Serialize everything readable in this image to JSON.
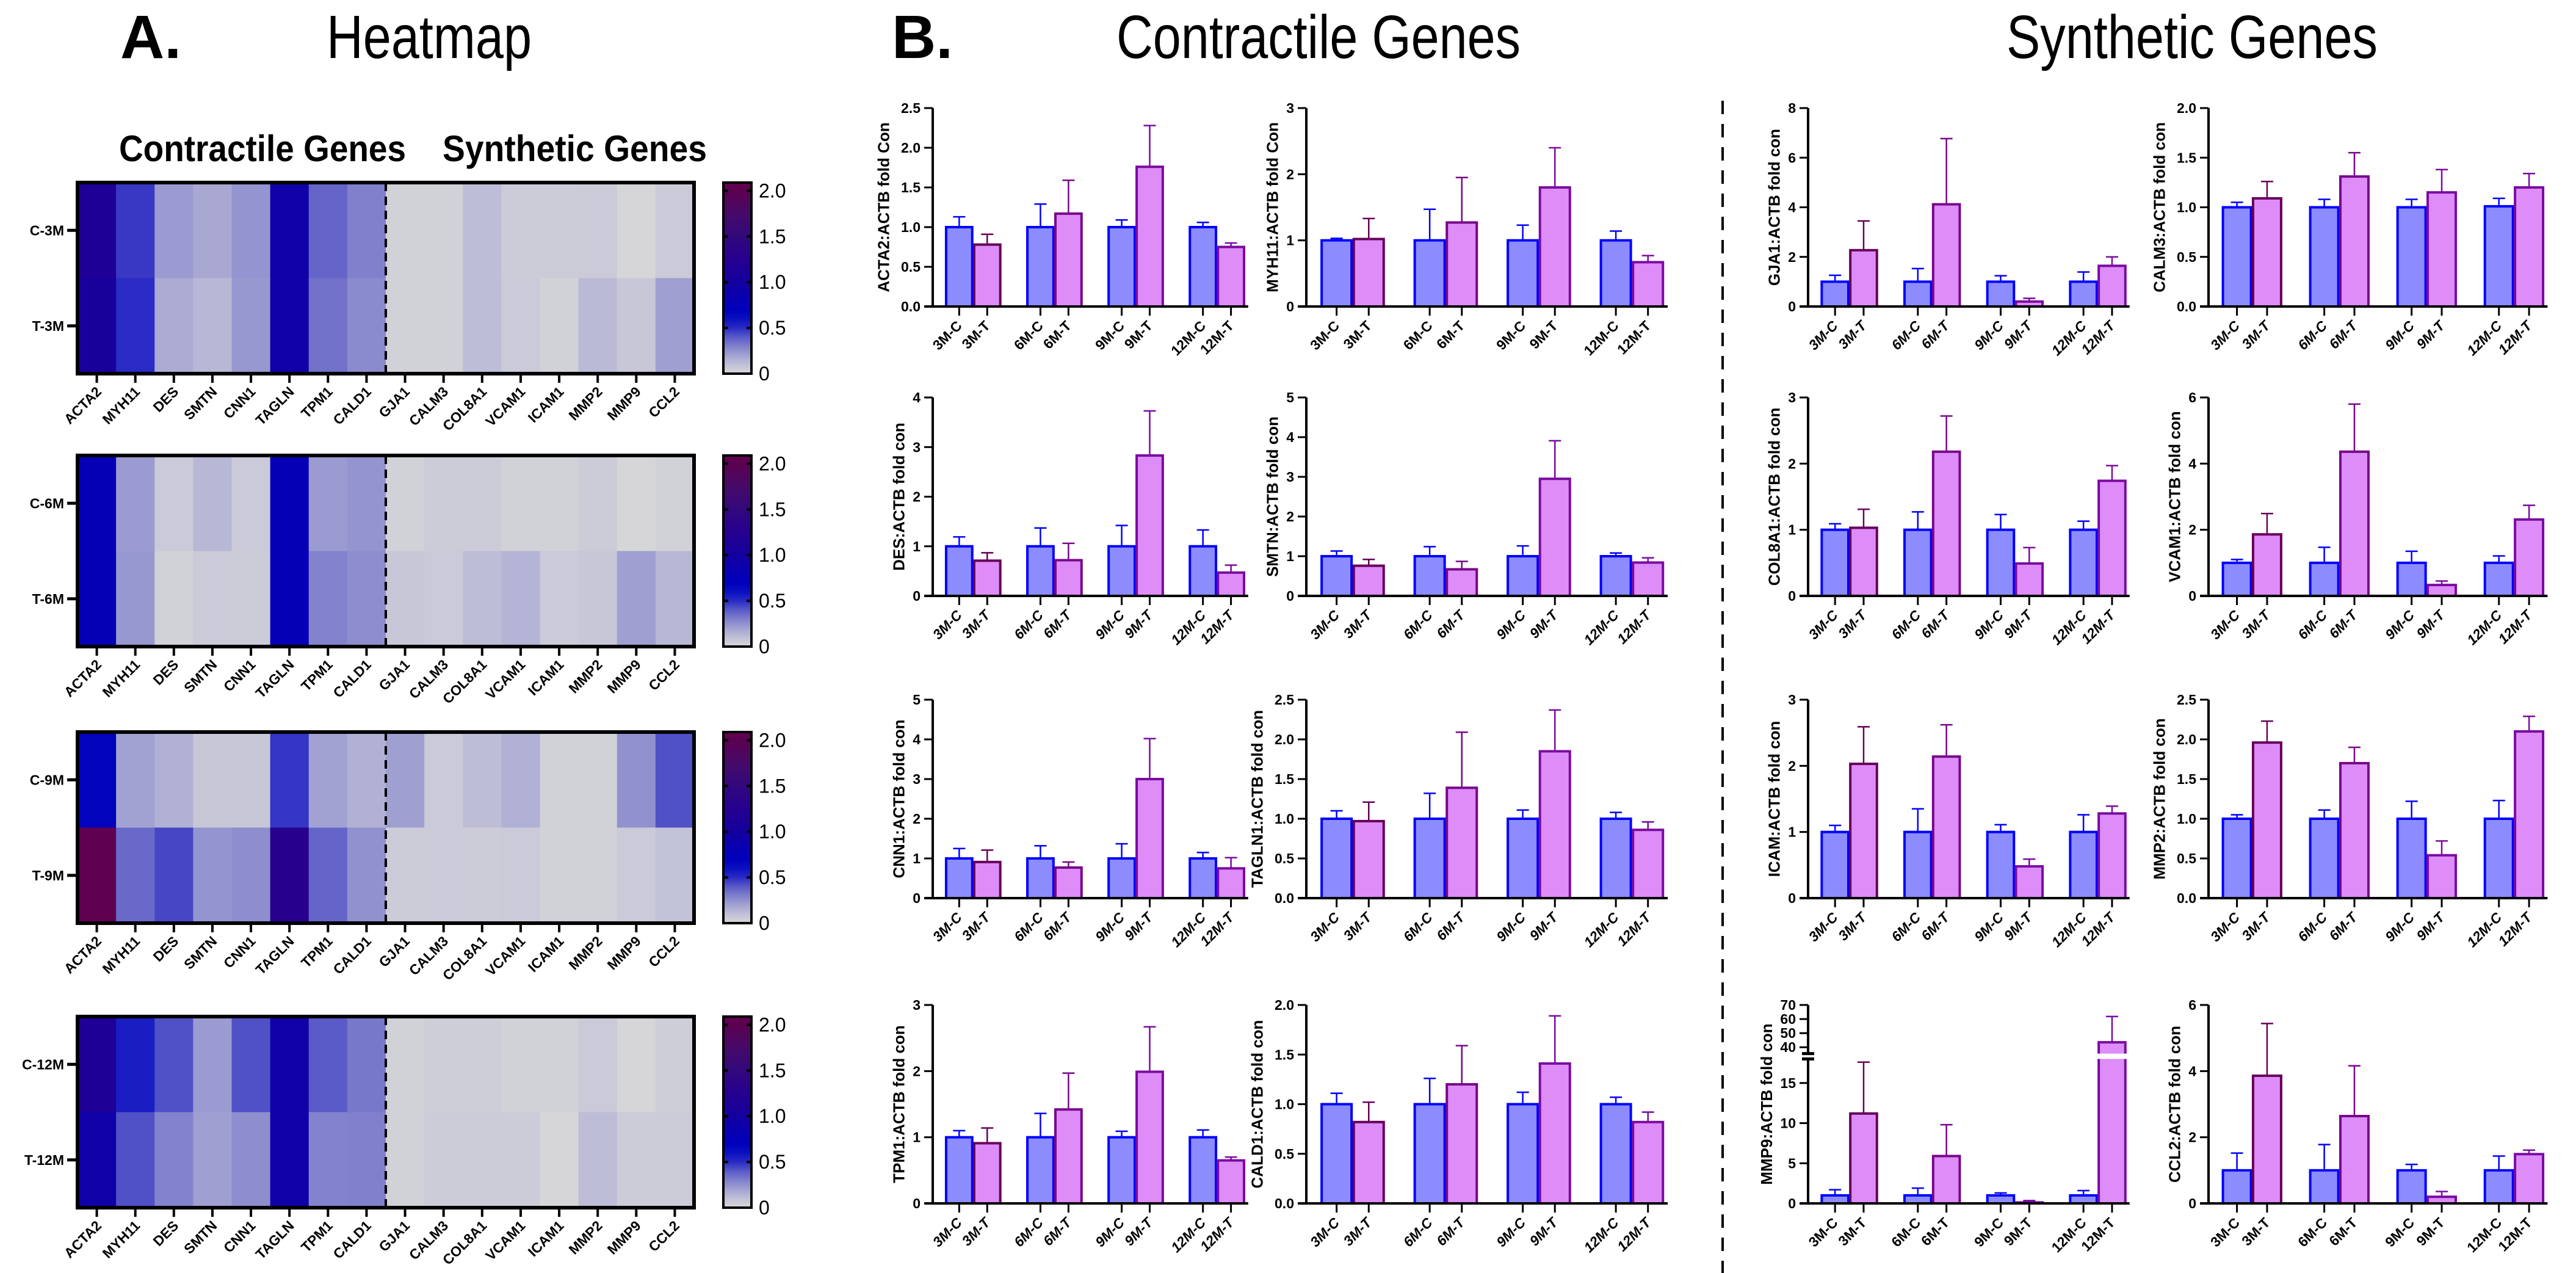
{
  "panel_a": {
    "letter": "A.",
    "title": "Heatmap",
    "group_labels": [
      "Contractile Genes",
      "Synthetic Genes"
    ]
  },
  "panel_b": {
    "letter": "B.",
    "group_titles": [
      "Contractile Genes",
      "Synthetic Genes"
    ]
  },
  "colors": {
    "control_fill": "#8c8cff",
    "control_stroke": "#0000ff",
    "treated_fill": "#dd8cf8",
    "treated_strokes": [
      "#660058",
      "#78068a",
      "#7a0aa0",
      "#7a0aa0"
    ],
    "axis": "#000000"
  },
  "heatmap_colorscale": [
    [
      0,
      "#d8d8d8"
    ],
    [
      0.1,
      "#c0c0d8"
    ],
    [
      0.2,
      "#a2a2d2"
    ],
    [
      0.3,
      "#8080cc"
    ],
    [
      0.4,
      "#5a5ac8"
    ],
    [
      0.5,
      "#2a2ac4"
    ],
    [
      0.6,
      "#0a10c0"
    ],
    [
      0.7,
      "#0000bc"
    ],
    [
      0.85,
      "#0a00b0"
    ],
    [
      1.0,
      "#14009e"
    ],
    [
      1.25,
      "#260090"
    ],
    [
      1.5,
      "#32087c"
    ],
    [
      1.75,
      "#460a68"
    ],
    [
      2.0,
      "#5c0050"
    ],
    [
      2.09,
      "#640050"
    ]
  ],
  "chart_data": [
    {
      "type": "heatmap",
      "rows": [
        "C-3M",
        "T-3M"
      ],
      "columns": [
        "ACTA2",
        "MYH11",
        "DES",
        "SMTN",
        "CNN1",
        "TAGLN",
        "TPM1",
        "CALD1",
        "GJA1",
        "CALM3",
        "COL8A1",
        "VCAM1",
        "ICAM1",
        "MMP2",
        "MMP9",
        "CCL2"
      ],
      "values": [
        [
          1.15,
          0.47,
          0.22,
          0.18,
          0.24,
          0.92,
          0.37,
          0.3,
          0.03,
          0.03,
          0.11,
          0.05,
          0.05,
          0.06,
          0.01,
          0.06
        ],
        [
          1.05,
          0.5,
          0.17,
          0.13,
          0.23,
          0.92,
          0.34,
          0.27,
          0.03,
          0.03,
          0.11,
          0.06,
          0.03,
          0.12,
          0.07,
          0.21
        ]
      ],
      "divider_after_column": "CALD1",
      "colorbar": {
        "range": [
          0,
          2.09
        ],
        "ticks": [
          0,
          0.5,
          1.0,
          1.5,
          2.0
        ],
        "tick_labels": [
          "0",
          "0.5",
          "1.0",
          "1.5",
          "2.0"
        ]
      }
    },
    {
      "type": "heatmap",
      "rows": [
        "C-6M",
        "T-6M"
      ],
      "columns": [
        "ACTA2",
        "MYH11",
        "DES",
        "SMTN",
        "CNN1",
        "TAGLN",
        "TPM1",
        "CALD1",
        "GJA1",
        "CALM3",
        "COL8A1",
        "VCAM1",
        "ICAM1",
        "MMP2",
        "MMP9",
        "CCL2"
      ],
      "values": [
        [
          0.78,
          0.22,
          0.06,
          0.13,
          0.06,
          0.78,
          0.22,
          0.24,
          0.03,
          0.05,
          0.05,
          0.03,
          0.03,
          0.05,
          0.01,
          0.03
        ],
        [
          0.78,
          0.23,
          0.03,
          0.06,
          0.05,
          0.78,
          0.29,
          0.26,
          0.07,
          0.06,
          0.11,
          0.14,
          0.06,
          0.07,
          0.21,
          0.13
        ]
      ],
      "divider_after_column": "CALD1",
      "colorbar": {
        "range": [
          0,
          2.09
        ],
        "ticks": [
          0,
          0.5,
          1.0,
          1.5,
          2.0
        ],
        "tick_labels": [
          "0",
          "0.5",
          "1.0",
          "1.5",
          "2.0"
        ]
      }
    },
    {
      "type": "heatmap",
      "rows": [
        "C-9M",
        "T-9M"
      ],
      "columns": [
        "ACTA2",
        "MYH11",
        "DES",
        "SMTN",
        "CNN1",
        "TAGLN",
        "TPM1",
        "CALD1",
        "GJA1",
        "CALM3",
        "COL8A1",
        "VCAM1",
        "ICAM1",
        "MMP2",
        "MMP9",
        "CCL2"
      ],
      "values": [
        [
          0.68,
          0.2,
          0.15,
          0.07,
          0.07,
          0.48,
          0.2,
          0.15,
          0.21,
          0.06,
          0.11,
          0.15,
          0.03,
          0.03,
          0.25,
          0.42
        ],
        [
          2.05,
          0.36,
          0.44,
          0.24,
          0.26,
          1.28,
          0.37,
          0.25,
          0.05,
          0.06,
          0.05,
          0.06,
          0.03,
          0.03,
          0.06,
          0.09
        ]
      ],
      "divider_after_column": "CALD1",
      "colorbar": {
        "range": [
          0,
          2.09
        ],
        "ticks": [
          0,
          0.5,
          1.0,
          1.5,
          2.0
        ],
        "tick_labels": [
          "0",
          "0.5",
          "1.0",
          "1.5",
          "2.0"
        ]
      }
    },
    {
      "type": "heatmap",
      "rows": [
        "C-12M",
        "T-12M"
      ],
      "columns": [
        "ACTA2",
        "MYH11",
        "DES",
        "SMTN",
        "CNN1",
        "TAGLN",
        "TPM1",
        "CALD1",
        "GJA1",
        "CALM3",
        "COL8A1",
        "VCAM1",
        "ICAM1",
        "MMP2",
        "MMP9",
        "CCL2"
      ],
      "values": [
        [
          1.15,
          0.55,
          0.42,
          0.22,
          0.42,
          0.92,
          0.4,
          0.32,
          0.03,
          0.04,
          0.04,
          0.03,
          0.03,
          0.06,
          0.01,
          0.04
        ],
        [
          0.92,
          0.42,
          0.29,
          0.21,
          0.26,
          0.92,
          0.29,
          0.3,
          0.03,
          0.05,
          0.05,
          0.05,
          0.01,
          0.11,
          0.05,
          0.05
        ]
      ],
      "divider_after_column": "CALD1",
      "colorbar": {
        "range": [
          0,
          2.09
        ],
        "ticks": [
          0,
          0.5,
          1.0,
          1.5,
          2.0
        ],
        "tick_labels": [
          "0",
          "0.5",
          "1.0",
          "1.5",
          "2.0"
        ]
      }
    },
    {
      "type": "bar",
      "panel": "contractile",
      "gene": "ACTA2",
      "ylabel": "ACTA2:ACTB fold Con",
      "categories": [
        "3M-C",
        "3M-T",
        "6M-C",
        "6M-T",
        "9M-C",
        "9M-T",
        "12M-C",
        "12M-T"
      ],
      "values": [
        1.0,
        0.78,
        1.0,
        1.17,
        1.0,
        1.76,
        1.0,
        0.75
      ],
      "sem": [
        0.13,
        0.13,
        0.29,
        0.42,
        0.09,
        0.52,
        0.06,
        0.05
      ],
      "ylim": [
        0,
        2.5
      ],
      "yticks": [
        0,
        0.5,
        1.0,
        1.5,
        2.0,
        2.5
      ],
      "ytick_labels": [
        "0.0",
        "0.5",
        "1.0",
        "1.5",
        "2.0",
        "2.5"
      ]
    },
    {
      "type": "bar",
      "panel": "contractile",
      "gene": "MYH11",
      "ylabel": "MYH11:ACTB fold Con",
      "categories": [
        "3M-C",
        "3M-T",
        "6M-C",
        "6M-T",
        "9M-C",
        "9M-T",
        "12M-C",
        "12M-T"
      ],
      "values": [
        1.0,
        1.02,
        1.0,
        1.27,
        1.0,
        1.8,
        1.0,
        0.67
      ],
      "sem": [
        0.03,
        0.31,
        0.47,
        0.68,
        0.23,
        0.6,
        0.14,
        0.1
      ],
      "ylim": [
        0,
        3
      ],
      "yticks": [
        0,
        1,
        2,
        3
      ],
      "ytick_labels": [
        "0",
        "1",
        "2",
        "3"
      ]
    },
    {
      "type": "bar",
      "panel": "contractile",
      "gene": "DES",
      "ylabel": "DES:ACTB fold con",
      "categories": [
        "3M-C",
        "3M-T",
        "6M-C",
        "6M-T",
        "9M-C",
        "9M-T",
        "12M-C",
        "12M-T"
      ],
      "values": [
        1.0,
        0.71,
        1.0,
        0.72,
        1.0,
        2.83,
        1.0,
        0.47
      ],
      "sem": [
        0.19,
        0.16,
        0.37,
        0.34,
        0.42,
        0.9,
        0.33,
        0.15
      ],
      "ylim": [
        0,
        4
      ],
      "yticks": [
        0,
        1,
        2,
        3,
        4
      ],
      "ytick_labels": [
        "0",
        "1",
        "2",
        "3",
        "4"
      ]
    },
    {
      "type": "bar",
      "panel": "contractile",
      "gene": "SMTN",
      "ylabel": "SMTN:ACTB fold con",
      "categories": [
        "3M-C",
        "3M-T",
        "6M-C",
        "6M-T",
        "9M-C",
        "9M-T",
        "12M-C",
        "12M-T"
      ],
      "values": [
        1.0,
        0.76,
        1.0,
        0.67,
        1.0,
        2.95,
        1.0,
        0.84
      ],
      "sem": [
        0.13,
        0.16,
        0.24,
        0.2,
        0.26,
        0.96,
        0.08,
        0.12
      ],
      "ylim": [
        0,
        5
      ],
      "yticks": [
        0,
        1,
        2,
        3,
        4,
        5
      ],
      "ytick_labels": [
        "0",
        "1",
        "2",
        "3",
        "4",
        "5"
      ]
    },
    {
      "type": "bar",
      "panel": "contractile",
      "gene": "CNN1",
      "ylabel": "CNN1:ACTB fold con",
      "categories": [
        "3M-C",
        "3M-T",
        "6M-C",
        "6M-T",
        "9M-C",
        "9M-T",
        "12M-C",
        "12M-T"
      ],
      "values": [
        1.0,
        0.91,
        1.0,
        0.77,
        1.0,
        3.0,
        1.0,
        0.75
      ],
      "sem": [
        0.25,
        0.3,
        0.32,
        0.14,
        0.37,
        1.02,
        0.15,
        0.27
      ],
      "ylim": [
        0,
        5
      ],
      "yticks": [
        0,
        1,
        2,
        3,
        4,
        5
      ],
      "ytick_labels": [
        "0",
        "1",
        "2",
        "3",
        "4",
        "5"
      ]
    },
    {
      "type": "bar",
      "panel": "contractile",
      "gene": "TAGLN1",
      "ylabel": "TAGLN1:ACTB fold con",
      "categories": [
        "3M-C",
        "3M-T",
        "6M-C",
        "6M-T",
        "9M-C",
        "9M-T",
        "12M-C",
        "12M-T"
      ],
      "values": [
        1.0,
        0.97,
        1.0,
        1.39,
        1.0,
        1.85,
        1.0,
        0.86
      ],
      "sem": [
        0.1,
        0.24,
        0.32,
        0.7,
        0.11,
        0.52,
        0.08,
        0.1
      ],
      "ylim": [
        0,
        2.5
      ],
      "yticks": [
        0,
        0.5,
        1.0,
        1.5,
        2.0,
        2.5
      ],
      "ytick_labels": [
        "0.0",
        "0.5",
        "1.0",
        "1.5",
        "2.0",
        "2.5"
      ]
    },
    {
      "type": "bar",
      "panel": "contractile",
      "gene": "TPM1",
      "ylabel": "TPM1:ACTB fold con",
      "categories": [
        "3M-C",
        "3M-T",
        "6M-C",
        "6M-T",
        "9M-C",
        "9M-T",
        "12M-C",
        "12M-T"
      ],
      "values": [
        1.0,
        0.91,
        1.0,
        1.42,
        1.0,
        1.99,
        1.0,
        0.65
      ],
      "sem": [
        0.1,
        0.23,
        0.36,
        0.55,
        0.09,
        0.68,
        0.11,
        0.05
      ],
      "ylim": [
        0,
        3
      ],
      "yticks": [
        0,
        1,
        2,
        3
      ],
      "ytick_labels": [
        "0",
        "1",
        "2",
        "3"
      ]
    },
    {
      "type": "bar",
      "panel": "contractile",
      "gene": "CALD1",
      "ylabel": "CALD1:ACTB fold con",
      "categories": [
        "3M-C",
        "3M-T",
        "6M-C",
        "6M-T",
        "9M-C",
        "9M-T",
        "12M-C",
        "12M-T"
      ],
      "values": [
        1.0,
        0.82,
        1.0,
        1.2,
        1.0,
        1.41,
        1.0,
        0.82
      ],
      "sem": [
        0.11,
        0.2,
        0.26,
        0.39,
        0.12,
        0.48,
        0.07,
        0.1
      ],
      "ylim": [
        0,
        2.0
      ],
      "yticks": [
        0,
        0.5,
        1.0,
        1.5,
        2.0
      ],
      "ytick_labels": [
        "0.0",
        "0.5",
        "1.0",
        "1.5",
        "2.0"
      ]
    },
    {
      "type": "bar",
      "panel": "synthetic",
      "gene": "GJA1",
      "ylabel": "GJA1:ACTB fold con",
      "categories": [
        "3M-C",
        "3M-T",
        "6M-C",
        "6M-T",
        "9M-C",
        "9M-T",
        "12M-C",
        "12M-T"
      ],
      "values": [
        1.0,
        2.27,
        1.0,
        4.12,
        1.0,
        0.2,
        1.0,
        1.64
      ],
      "sem": [
        0.26,
        1.18,
        0.53,
        2.65,
        0.24,
        0.13,
        0.39,
        0.36
      ],
      "ylim": [
        0,
        8
      ],
      "yticks": [
        0,
        2,
        4,
        6,
        8
      ],
      "ytick_labels": [
        "0",
        "2",
        "4",
        "6",
        "8"
      ]
    },
    {
      "type": "bar",
      "panel": "synthetic",
      "gene": "CALM3",
      "ylabel": "CALM3:ACTB fold con",
      "categories": [
        "3M-C",
        "3M-T",
        "6M-C",
        "6M-T",
        "9M-C",
        "9M-T",
        "12M-C",
        "12M-T"
      ],
      "values": [
        1.0,
        1.09,
        1.0,
        1.31,
        1.0,
        1.15,
        1.01,
        1.2
      ],
      "sem": [
        0.05,
        0.17,
        0.08,
        0.24,
        0.08,
        0.23,
        0.08,
        0.14
      ],
      "ylim": [
        0,
        2.0
      ],
      "yticks": [
        0,
        0.5,
        1.0,
        1.5,
        2.0
      ],
      "ytick_labels": [
        "0.0",
        "0.5",
        "1.0",
        "1.5",
        "2.0"
      ]
    },
    {
      "type": "bar",
      "panel": "synthetic",
      "gene": "COL8A1",
      "ylabel": "COL8A1:ACTB fold con",
      "categories": [
        "3M-C",
        "3M-T",
        "6M-C",
        "6M-T",
        "9M-C",
        "9M-T",
        "12M-C",
        "12M-T"
      ],
      "values": [
        1.0,
        1.03,
        1.0,
        2.18,
        1.0,
        0.49,
        1.0,
        1.74
      ],
      "sem": [
        0.09,
        0.28,
        0.27,
        0.54,
        0.23,
        0.24,
        0.13,
        0.23
      ],
      "ylim": [
        0,
        3
      ],
      "yticks": [
        0,
        1,
        2,
        3
      ],
      "ytick_labels": [
        "0",
        "1",
        "2",
        "3"
      ]
    },
    {
      "type": "bar",
      "panel": "synthetic",
      "gene": "VCAM1",
      "ylabel": "VCAM1:ACTB fold con",
      "categories": [
        "3M-C",
        "3M-T",
        "6M-C",
        "6M-T",
        "9M-C",
        "9M-T",
        "12M-C",
        "12M-T"
      ],
      "values": [
        1.0,
        1.86,
        1.0,
        4.36,
        1.0,
        0.33,
        1.0,
        2.31
      ],
      "sem": [
        0.1,
        0.63,
        0.47,
        1.44,
        0.35,
        0.12,
        0.21,
        0.43
      ],
      "ylim": [
        0,
        6
      ],
      "yticks": [
        0,
        2,
        4,
        6
      ],
      "ytick_labels": [
        "0",
        "2",
        "4",
        "6"
      ]
    },
    {
      "type": "bar",
      "panel": "synthetic",
      "gene": "ICAM",
      "ylabel": "ICAM:ACTB fold con",
      "categories": [
        "3M-C",
        "3M-T",
        "6M-C",
        "6M-T",
        "9M-C",
        "9M-T",
        "12M-C",
        "12M-T"
      ],
      "values": [
        1.0,
        2.03,
        1.0,
        2.14,
        1.0,
        0.48,
        1.0,
        1.28
      ],
      "sem": [
        0.1,
        0.56,
        0.35,
        0.48,
        0.11,
        0.11,
        0.26,
        0.11
      ],
      "ylim": [
        0,
        3
      ],
      "yticks": [
        0,
        1,
        2,
        3
      ],
      "ytick_labels": [
        "0",
        "1",
        "2",
        "3"
      ]
    },
    {
      "type": "bar",
      "panel": "synthetic",
      "gene": "MMP2",
      "ylabel": "MMP2:ACTB fold con",
      "categories": [
        "3M-C",
        "3M-T",
        "6M-C",
        "6M-T",
        "9M-C",
        "9M-T",
        "12M-C",
        "12M-T"
      ],
      "values": [
        1.0,
        1.96,
        1.0,
        1.7,
        1.0,
        0.54,
        1.0,
        2.1
      ],
      "sem": [
        0.05,
        0.27,
        0.11,
        0.2,
        0.22,
        0.18,
        0.23,
        0.19
      ],
      "ylim": [
        0,
        2.5
      ],
      "yticks": [
        0,
        0.5,
        1.0,
        1.5,
        2.0,
        2.5
      ],
      "ytick_labels": [
        "0.0",
        "0.5",
        "1.0",
        "1.5",
        "2.0",
        "2.5"
      ]
    },
    {
      "type": "bar",
      "panel": "synthetic",
      "gene": "MMP9",
      "ylabel": "MMP9:ACTB fold con",
      "categories": [
        "3M-C",
        "3M-T",
        "6M-C",
        "6M-T",
        "9M-C",
        "9M-T",
        "12M-C",
        "12M-T"
      ],
      "values": [
        1.0,
        11.2,
        1.0,
        5.9,
        1.0,
        0.12,
        1.0,
        43.5
      ],
      "sem": [
        0.7,
        6.4,
        0.9,
        3.9,
        0.3,
        0.23,
        0.6,
        18.3
      ],
      "ylim": [
        0,
        70
      ],
      "axis_break": [
        18,
        35.5
      ],
      "yticks": [
        0,
        5,
        10,
        15,
        40,
        50,
        60,
        70
      ],
      "ytick_labels": [
        "0",
        "5",
        "10",
        "15",
        "40",
        "50",
        "60",
        "70"
      ]
    },
    {
      "type": "bar",
      "panel": "synthetic",
      "gene": "CCL2",
      "ylabel": "CCL2:ACTB fold con",
      "categories": [
        "3M-C",
        "3M-T",
        "6M-C",
        "6M-T",
        "9M-C",
        "9M-T",
        "12M-C",
        "12M-T"
      ],
      "values": [
        1.0,
        3.86,
        1.0,
        2.64,
        1.0,
        0.2,
        1.0,
        1.49
      ],
      "sem": [
        0.52,
        1.58,
        0.78,
        1.52,
        0.18,
        0.16,
        0.43,
        0.12
      ],
      "ylim": [
        0,
        6
      ],
      "yticks": [
        0,
        2,
        4,
        6
      ],
      "ytick_labels": [
        "0",
        "2",
        "4",
        "6"
      ]
    }
  ]
}
